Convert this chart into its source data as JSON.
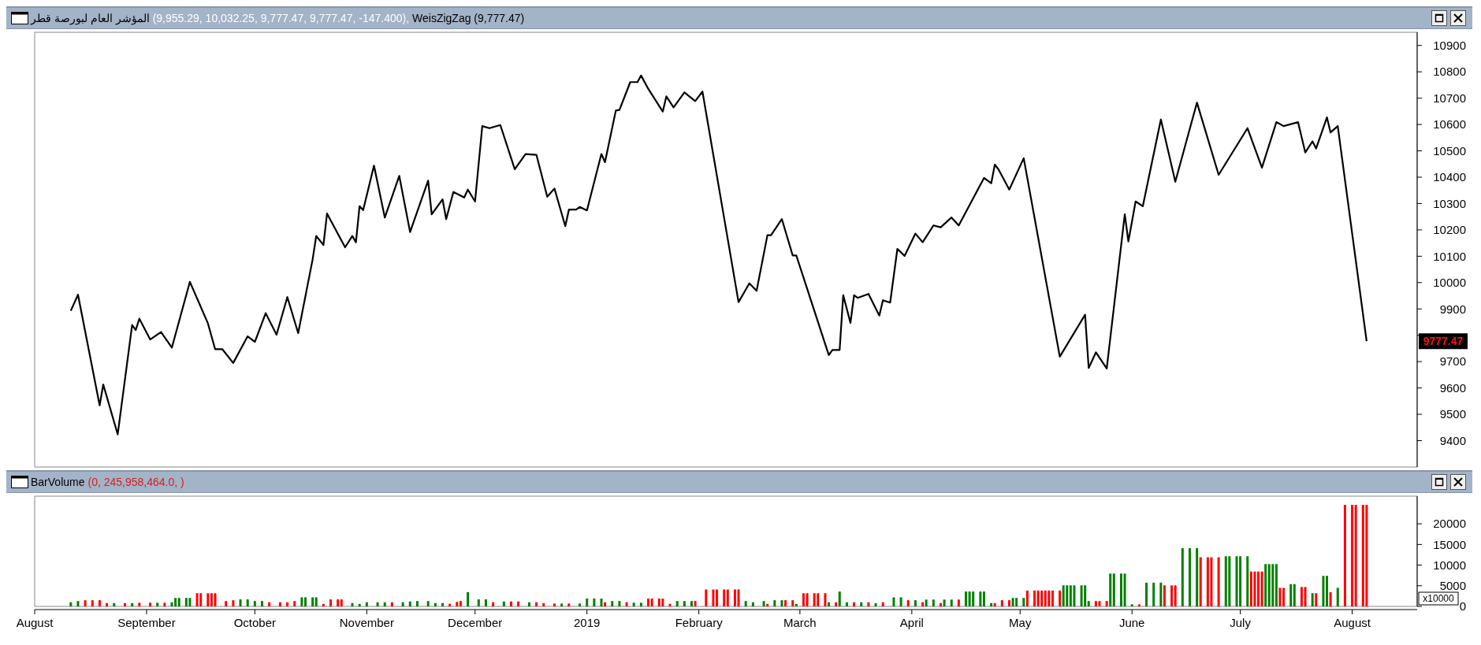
{
  "chart_data": [
    {
      "type": "line",
      "title": "المؤشر العام لبورصة قطر",
      "subtitle": "(9,955.29, 10,032.25, 9,777.47, 9,777.47, -147.400),",
      "legend": "top",
      "tick_labels": "y",
      "grid": false,
      "marker": "none",
      "line_style": "solid",
      "xlim": [
        "2018-08-01",
        "2019-08-19"
      ],
      "ylim": [
        9300,
        10950
      ],
      "yticks": [
        9400,
        9500,
        9600,
        9700,
        {
          "value": 9800,
          "label": null
        },
        9900,
        10000,
        10100,
        10200,
        10300,
        10400,
        10500,
        10600,
        10700,
        10800,
        10900
      ],
      "annotations": [
        "9777.47"
      ],
      "series": [
        {
          "name": "WeisZigZag (9,777.47)",
          "color": "#000000",
          "x": [
            "2018-08-11",
            "2018-08-13",
            "2018-08-19",
            "2018-08-20",
            "2018-08-24",
            "2018-08-28",
            "2018-08-29",
            "2018-08-30",
            "2018-09-02",
            "2018-09-05",
            "2018-09-08",
            "2018-09-13",
            "2018-09-18",
            "2018-09-20",
            "2018-09-22",
            "2018-09-25",
            "2018-09-29",
            "2018-10-01",
            "2018-10-04",
            "2018-10-07",
            "2018-10-10",
            "2018-10-13",
            "2018-10-17",
            "2018-10-18",
            "2018-10-20",
            "2018-10-21",
            "2018-10-26",
            "2018-10-28",
            "2018-10-29",
            "2018-10-30",
            "2018-10-31",
            "2018-11-03",
            "2018-11-06",
            "2018-11-10",
            "2018-11-13",
            "2018-11-18",
            "2018-11-19",
            "2018-11-22",
            "2018-11-23",
            "2018-11-25",
            "2018-11-28",
            "2018-11-29",
            "2018-12-01",
            "2018-12-03",
            "2018-12-05",
            "2018-12-08",
            "2018-12-12",
            "2018-12-15",
            "2018-12-18",
            "2018-12-21",
            "2018-12-23",
            "2018-12-26",
            "2018-12-27",
            "2018-12-29",
            "2018-12-30",
            "2019-01-01",
            "2019-01-05",
            "2019-01-06",
            "2019-01-09",
            "2019-01-10",
            "2019-01-13",
            "2019-01-15",
            "2019-01-16",
            "2019-01-18",
            "2019-01-22",
            "2019-01-23",
            "2019-01-25",
            "2019-01-28",
            "2019-01-31",
            "2019-02-02",
            "2019-02-12",
            "2019-02-15",
            "2019-02-17",
            "2019-02-20",
            "2019-02-21",
            "2019-02-24",
            "2019-02-27",
            "2019-02-28",
            "2019-03-09",
            "2019-03-10",
            "2019-03-12",
            "2019-03-13",
            "2019-03-15",
            "2019-03-16",
            "2019-03-17",
            "2019-03-20",
            "2019-03-23",
            "2019-03-24",
            "2019-03-26",
            "2019-03-28",
            "2019-03-30",
            "2019-04-02",
            "2019-04-04",
            "2019-04-07",
            "2019-04-09",
            "2019-04-12",
            "2019-04-14",
            "2019-04-21",
            "2019-04-23",
            "2019-04-24",
            "2019-04-25",
            "2019-04-28",
            "2019-05-02",
            "2019-05-12",
            "2019-05-19",
            "2019-05-20",
            "2019-05-22",
            "2019-05-25",
            "2019-05-30",
            "2019-05-31",
            "2019-06-02",
            "2019-06-04",
            "2019-06-09",
            "2019-06-13",
            "2019-06-19",
            "2019-06-25",
            "2019-07-03",
            "2019-07-07",
            "2019-07-11",
            "2019-07-13",
            "2019-07-17",
            "2019-07-19",
            "2019-07-21",
            "2019-07-22",
            "2019-07-25",
            "2019-07-26",
            "2019-07-28",
            "2019-08-05"
          ],
          "values": [
            9893,
            9954,
            9534,
            9613,
            9424,
            9839,
            9820,
            9863,
            9784,
            9812,
            9753,
            10003,
            9845,
            9747,
            9747,
            9695,
            9796,
            9775,
            9884,
            9802,
            9945,
            9808,
            10088,
            10177,
            10143,
            10262,
            10134,
            10177,
            10153,
            10290,
            10275,
            10444,
            10247,
            10405,
            10192,
            10387,
            10259,
            10316,
            10241,
            10344,
            10323,
            10353,
            10308,
            10594,
            10586,
            10598,
            10430,
            10488,
            10485,
            10326,
            10357,
            10214,
            10277,
            10277,
            10287,
            10274,
            10488,
            10457,
            10653,
            10655,
            10761,
            10761,
            10786,
            10735,
            10649,
            10707,
            10665,
            10722,
            10689,
            10725,
            9926,
            9997,
            9969,
            10180,
            10180,
            10241,
            10103,
            10103,
            9725,
            9744,
            9744,
            9952,
            9847,
            9952,
            9942,
            9957,
            9875,
            9933,
            9924,
            10128,
            10101,
            10186,
            10153,
            10217,
            10210,
            10247,
            10217,
            10397,
            10377,
            10448,
            10430,
            10353,
            10472,
            9719,
            9878,
            9676,
            9735,
            9674,
            10259,
            10156,
            10308,
            10290,
            10619,
            10383,
            10683,
            10409,
            10586,
            10436,
            10609,
            10594,
            10609,
            10494,
            10536,
            10509,
            10627,
            10570,
            10594,
            9777.47
          ]
        }
      ]
    },
    {
      "type": "bar",
      "title": "BarVolume",
      "subtitle": "(0, 245,958,464.0, )",
      "grid": false,
      "xlim": [
        "2018-08-01",
        "2019-08-19"
      ],
      "ylim": [
        0,
        26700
      ],
      "yticks": [
        0,
        5000,
        10000,
        15000,
        20000
      ],
      "xticks": [
        {
          "value": "2018-08-01",
          "label": "August"
        },
        {
          "value": "2018-09-01",
          "label": "September"
        },
        {
          "value": "2018-10-01",
          "label": "October"
        },
        {
          "value": "2018-11-01",
          "label": "November"
        },
        {
          "value": "2018-12-01",
          "label": "December"
        },
        {
          "value": "2019-01-01",
          "label": "2019"
        },
        {
          "value": "2019-02-01",
          "label": "February"
        },
        {
          "value": "2019-03-01",
          "label": "March"
        },
        {
          "value": "2019-04-01",
          "label": "April"
        },
        {
          "value": "2019-05-01",
          "label": "May"
        },
        {
          "value": "2019-06-01",
          "label": "June"
        },
        {
          "value": "2019-07-01",
          "label": "July"
        },
        {
          "value": "2019-08-01",
          "label": "August"
        }
      ],
      "annotations": [
        "x10000"
      ],
      "x": [
        "2018-08-11",
        "2018-08-13",
        "2018-08-15",
        "2018-08-17",
        "2018-08-19",
        "2018-08-21",
        "2018-08-23",
        "2018-08-26",
        "2018-08-28",
        "2018-08-30",
        "2018-09-02",
        "2018-09-04",
        "2018-09-06",
        "2018-09-08",
        "2018-09-09",
        "2018-09-10",
        "2018-09-12",
        "2018-09-13",
        "2018-09-15",
        "2018-09-16",
        "2018-09-18",
        "2018-09-19",
        "2018-09-20",
        "2018-09-23",
        "2018-09-25",
        "2018-09-27",
        "2018-09-29",
        "2018-10-01",
        "2018-10-03",
        "2018-10-05",
        "2018-10-08",
        "2018-10-10",
        "2018-10-12",
        "2018-10-14",
        "2018-10-15",
        "2018-10-17",
        "2018-10-18",
        "2018-10-20",
        "2018-10-22",
        "2018-10-24",
        "2018-10-25",
        "2018-10-28",
        "2018-10-30",
        "2018-11-01",
        "2018-11-04",
        "2018-11-06",
        "2018-11-08",
        "2018-11-11",
        "2018-11-13",
        "2018-11-15",
        "2018-11-18",
        "2018-11-20",
        "2018-11-22",
        "2018-11-24",
        "2018-11-26",
        "2018-11-27",
        "2018-11-29",
        "2018-12-02",
        "2018-12-04",
        "2018-12-06",
        "2018-12-09",
        "2018-12-11",
        "2018-12-13",
        "2018-12-16",
        "2018-12-18",
        "2018-12-20",
        "2018-12-23",
        "2018-12-25",
        "2018-12-27",
        "2018-12-30",
        "2019-01-01",
        "2019-01-03",
        "2019-01-05",
        "2019-01-06",
        "2019-01-08",
        "2019-01-10",
        "2019-01-12",
        "2019-01-14",
        "2019-01-16",
        "2019-01-18",
        "2019-01-19",
        "2019-01-21",
        "2019-01-22",
        "2019-01-24",
        "2019-01-26",
        "2019-01-28",
        "2019-01-30",
        "2019-01-31",
        "2019-02-03",
        "2019-02-05",
        "2019-02-06",
        "2019-02-08",
        "2019-02-09",
        "2019-02-11",
        "2019-02-12",
        "2019-02-14",
        "2019-02-16",
        "2019-02-19",
        "2019-02-20",
        "2019-02-22",
        "2019-02-24",
        "2019-02-25",
        "2019-02-27",
        "2019-02-28",
        "2019-03-02",
        "2019-03-03",
        "2019-03-05",
        "2019-03-06",
        "2019-03-08",
        "2019-03-09",
        "2019-03-11",
        "2019-03-12",
        "2019-03-14",
        "2019-03-16",
        "2019-03-18",
        "2019-03-20",
        "2019-03-22",
        "2019-03-24",
        "2019-03-27",
        "2019-03-29",
        "2019-03-31",
        "2019-04-02",
        "2019-04-04",
        "2019-04-05",
        "2019-04-07",
        "2019-04-09",
        "2019-04-10",
        "2019-04-12",
        "2019-04-14",
        "2019-04-16",
        "2019-04-17",
        "2019-04-18",
        "2019-04-20",
        "2019-04-21",
        "2019-04-23",
        "2019-04-24",
        "2019-04-26",
        "2019-04-28",
        "2019-04-29",
        "2019-04-30",
        "2019-05-02",
        "2019-05-03",
        "2019-05-05",
        "2019-05-06",
        "2019-05-07",
        "2019-05-08",
        "2019-05-09",
        "2019-05-10",
        "2019-05-12",
        "2019-05-13",
        "2019-05-14",
        "2019-05-15",
        "2019-05-16",
        "2019-05-18",
        "2019-05-19",
        "2019-05-20",
        "2019-05-22",
        "2019-05-23",
        "2019-05-25",
        "2019-05-26",
        "2019-05-27",
        "2019-05-29",
        "2019-05-30",
        "2019-06-01",
        "2019-06-03",
        "2019-06-05",
        "2019-06-07",
        "2019-06-09",
        "2019-06-10",
        "2019-06-12",
        "2019-06-13",
        "2019-06-15",
        "2019-06-17",
        "2019-06-19",
        "2019-06-20",
        "2019-06-22",
        "2019-06-23",
        "2019-06-25",
        "2019-06-27",
        "2019-06-28",
        "2019-06-30",
        "2019-07-01",
        "2019-07-03",
        "2019-07-04",
        "2019-07-05",
        "2019-07-06",
        "2019-07-07",
        "2019-07-08",
        "2019-07-09",
        "2019-07-10",
        "2019-07-11",
        "2019-07-12",
        "2019-07-13",
        "2019-07-15",
        "2019-07-16",
        "2019-07-18",
        "2019-07-19",
        "2019-07-21",
        "2019-07-22",
        "2019-07-24",
        "2019-07-25",
        "2019-07-26",
        "2019-07-28",
        "2019-07-30",
        "2019-08-01",
        "2019-08-02",
        "2019-08-04",
        "2019-08-05"
      ],
      "values": [
        1000,
        1300,
        1500,
        1500,
        1500,
        800,
        800,
        800,
        800,
        900,
        900,
        900,
        900,
        1000,
        2050,
        2050,
        2050,
        2050,
        3200,
        3200,
        3200,
        3200,
        3200,
        1300,
        1500,
        1700,
        1700,
        1300,
        1300,
        1000,
        1000,
        1000,
        1300,
        2200,
        2200,
        2200,
        2200,
        600,
        1700,
        1700,
        1700,
        800,
        600,
        1000,
        1000,
        1000,
        1000,
        1000,
        1200,
        1300,
        1300,
        800,
        800,
        600,
        1100,
        1300,
        3450,
        1700,
        1700,
        1000,
        1200,
        1200,
        1200,
        1000,
        1000,
        800,
        700,
        700,
        700,
        700,
        1900,
        1900,
        1900,
        1000,
        1300,
        1300,
        1000,
        900,
        900,
        1900,
        1900,
        1900,
        1900,
        600,
        1300,
        1300,
        1300,
        1300,
        4100,
        4100,
        4100,
        4100,
        4100,
        4100,
        4100,
        1300,
        1000,
        1300,
        600,
        1500,
        1500,
        1500,
        1500,
        600,
        3200,
        3200,
        3200,
        3200,
        3200,
        1000,
        1000,
        3600,
        1000,
        1000,
        1000,
        1000,
        800,
        1000,
        2200,
        2200,
        1500,
        1500,
        1000,
        1650,
        1650,
        800,
        1650,
        1650,
        1650,
        3600,
        3600,
        3600,
        3600,
        3600,
        800,
        800,
        1500,
        1500,
        2050,
        2050,
        2050,
        3850,
        3850,
        3850,
        3850,
        3850,
        3850,
        3850,
        3850,
        5100,
        5100,
        5100,
        5100,
        5100,
        5100,
        1300,
        1300,
        1300,
        1300,
        7950,
        7950,
        7950,
        7950,
        500,
        500,
        5750,
        5750,
        5750,
        5100,
        5100,
        5100,
        14100,
        14100,
        14100,
        11900,
        11900,
        11900,
        11900,
        12150,
        12150,
        12150,
        12150,
        12150,
        8450,
        8450,
        8450,
        8450,
        10250,
        10250,
        10250,
        10250,
        4500,
        4500,
        5400,
        5400,
        4700,
        4700,
        3200,
        3200,
        7400,
        7400,
        3450,
        4500,
        24596,
        24596,
        24596,
        24596,
        24596
      ],
      "colors": [
        "#008000",
        "#008000",
        "#ff0000",
        "#ff0000",
        "#ff0000",
        "#ff0000",
        "#008000",
        "#ff0000",
        "#008000",
        "#ff0000",
        "#ff0000",
        "#008000",
        "#ff0000",
        "#008000",
        "#008000",
        "#008000",
        "#008000",
        "#008000",
        "#ff0000",
        "#ff0000",
        "#ff0000",
        "#ff0000",
        "#ff0000",
        "#ff0000",
        "#ff0000",
        "#008000",
        "#008000",
        "#008000",
        "#008000",
        "#ff0000",
        "#ff0000",
        "#ff0000",
        "#ff0000",
        "#008000",
        "#008000",
        "#008000",
        "#008000",
        "#ff0000",
        "#ff0000",
        "#ff0000",
        "#ff0000",
        "#008000",
        "#008000",
        "#008000",
        "#008000",
        "#008000",
        "#ff0000",
        "#008000",
        "#008000",
        "#008000",
        "#008000",
        "#008000",
        "#008000",
        "#ff0000",
        "#ff0000",
        "#ff0000",
        "#008000",
        "#008000",
        "#008000",
        "#ff0000",
        "#008000",
        "#ff0000",
        "#ff0000",
        "#008000",
        "#ff0000",
        "#ff0000",
        "#ff0000",
        "#008000",
        "#ff0000",
        "#008000",
        "#008000",
        "#008000",
        "#008000",
        "#ff0000",
        "#008000",
        "#008000",
        "#ff0000",
        "#008000",
        "#008000",
        "#ff0000",
        "#ff0000",
        "#ff0000",
        "#ff0000",
        "#ff0000",
        "#008000",
        "#008000",
        "#008000",
        "#ff0000",
        "#ff0000",
        "#ff0000",
        "#ff0000",
        "#ff0000",
        "#ff0000",
        "#ff0000",
        "#ff0000",
        "#008000",
        "#008000",
        "#008000",
        "#ff0000",
        "#008000",
        "#008000",
        "#ff0000",
        "#ff0000",
        "#008000",
        "#ff0000",
        "#ff0000",
        "#ff0000",
        "#ff0000",
        "#ff0000",
        "#008000",
        "#ff0000",
        "#008000",
        "#008000",
        "#ff0000",
        "#008000",
        "#ff0000",
        "#008000",
        "#ff0000",
        "#008000",
        "#008000",
        "#ff0000",
        "#008000",
        "#ff0000",
        "#008000",
        "#008000",
        "#ff0000",
        "#008000",
        "#008000",
        "#ff0000",
        "#008000",
        "#008000",
        "#008000",
        "#008000",
        "#008000",
        "#008000",
        "#ff0000",
        "#ff0000",
        "#ff0000",
        "#008000",
        "#008000",
        "#008000",
        "#ff0000",
        "#ff0000",
        "#ff0000",
        "#ff0000",
        "#ff0000",
        "#ff0000",
        "#ff0000",
        "#ff0000",
        "#008000",
        "#008000",
        "#008000",
        "#008000",
        "#008000",
        "#008000",
        "#008000",
        "#ff0000",
        "#ff0000",
        "#ff0000",
        "#008000",
        "#008000",
        "#008000",
        "#008000",
        "#008000",
        "#ff0000",
        "#008000",
        "#008000",
        "#008000",
        "#ff0000",
        "#ff0000",
        "#ff0000",
        "#008000",
        "#008000",
        "#008000",
        "#ff0000",
        "#ff0000",
        "#ff0000",
        "#ff0000",
        "#008000",
        "#008000",
        "#008000",
        "#008000",
        "#008000",
        "#ff0000",
        "#ff0000",
        "#ff0000",
        "#ff0000",
        "#008000",
        "#008000",
        "#008000",
        "#008000",
        "#ff0000",
        "#ff0000",
        "#008000",
        "#008000",
        "#ff0000",
        "#ff0000",
        "#008000",
        "#ff0000",
        "#008000",
        "#008000",
        "#ff0000",
        "#008000",
        "#ff0000",
        "#ff0000",
        "#ff0000",
        "#ff0000",
        "#ff0000"
      ]
    }
  ]
}
